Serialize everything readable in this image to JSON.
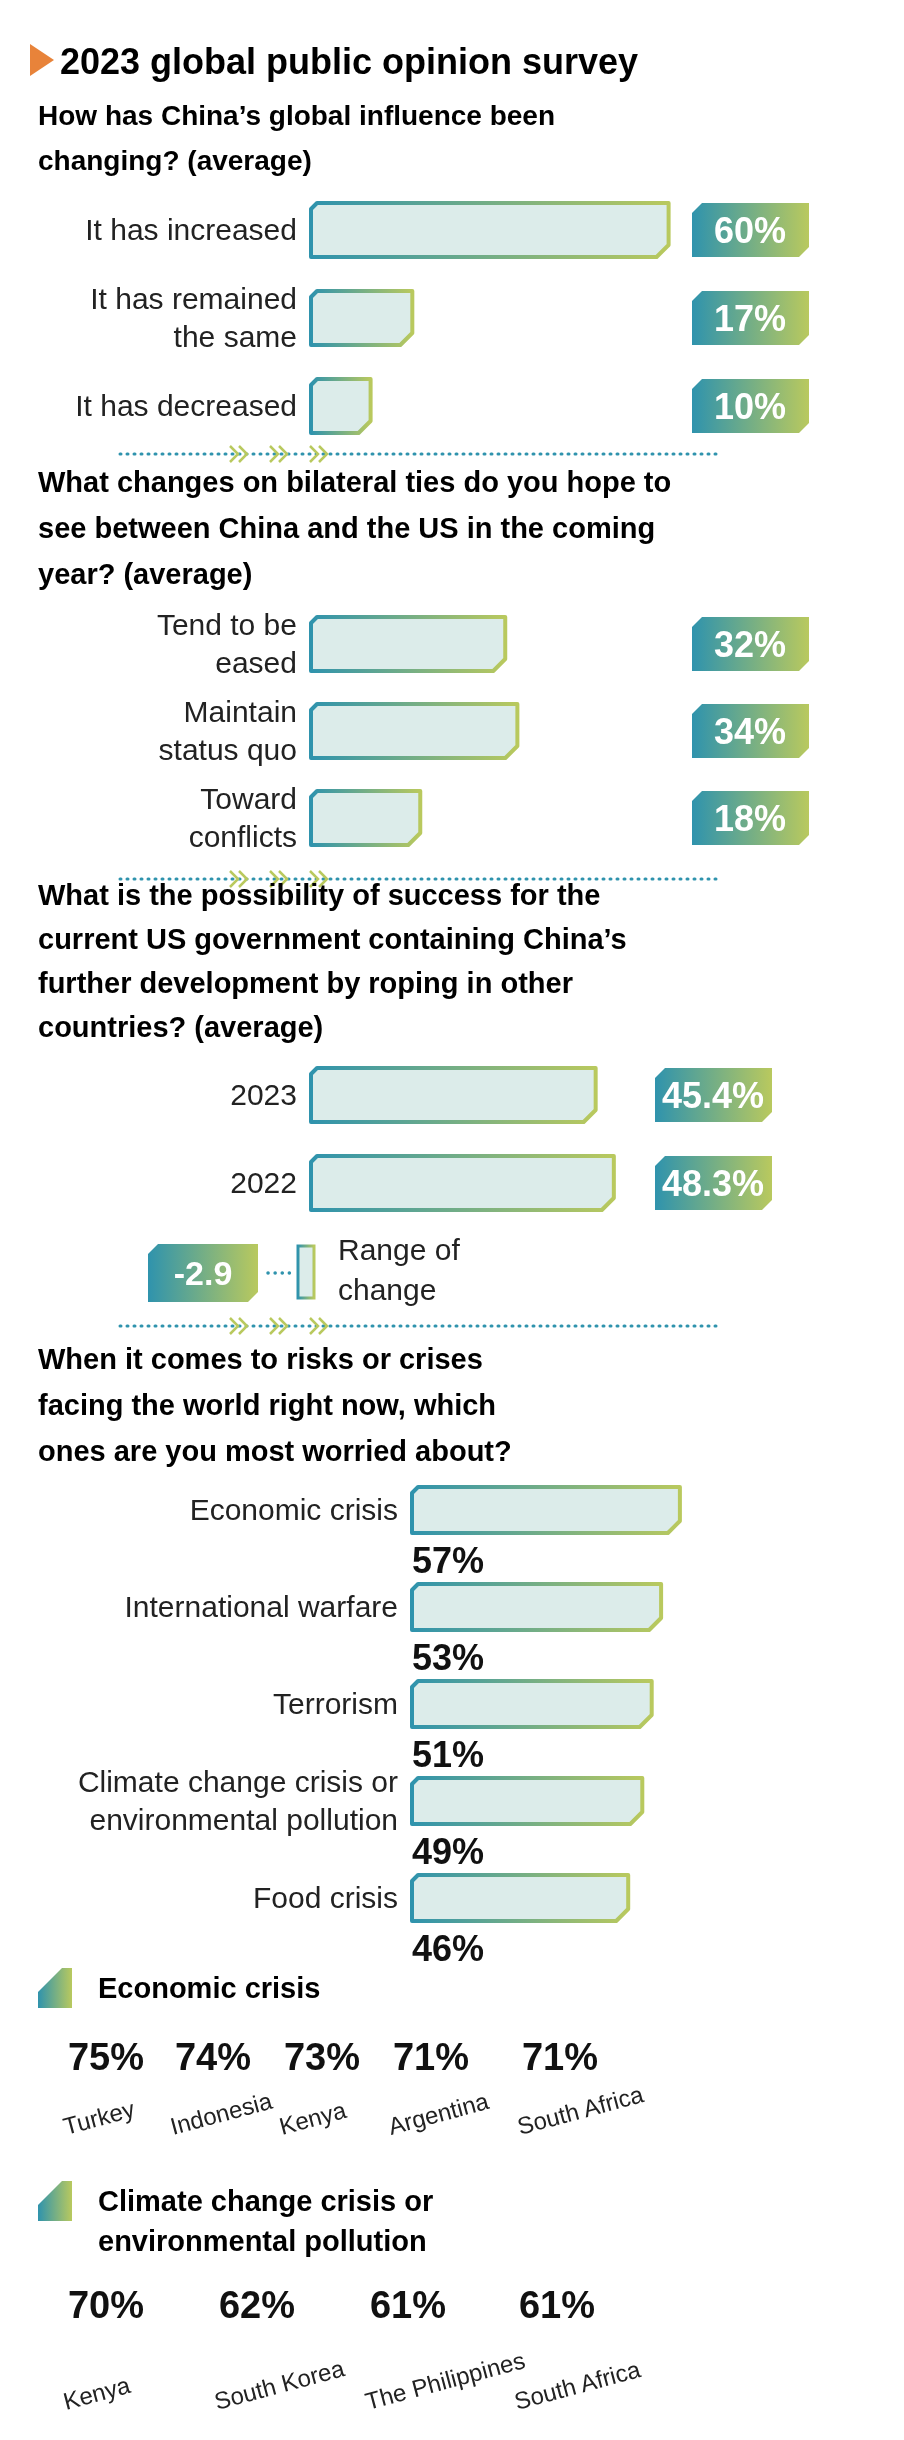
{
  "chart_data": [
    {
      "type": "bar",
      "orientation": "horizontal",
      "title": "2023 global public opinion survey",
      "subtitle": "How has China’s global influence been changing? (average)",
      "categories": [
        "It has increased",
        "It has remained the same",
        "It has decreased"
      ],
      "values": [
        60,
        17,
        10
      ],
      "value_labels": [
        "60%",
        "17%",
        "10%"
      ],
      "color": "#dcecea"
    },
    {
      "type": "bar",
      "orientation": "horizontal",
      "title": "What changes on bilateral ties do you hope to see between China and the US in the coming year? (average)",
      "categories": [
        "Tend to be eased",
        "Maintain status quo",
        "Toward conflicts"
      ],
      "values": [
        32,
        34,
        18
      ],
      "value_labels": [
        "32%",
        "34%",
        "18%"
      ],
      "color": "#dcecea"
    },
    {
      "type": "bar",
      "orientation": "horizontal",
      "title": "What is the possibility of success for the current US government containing China’s further development by roping in other countries? (average)",
      "categories": [
        "2023",
        "2022"
      ],
      "values": [
        45.4,
        48.3
      ],
      "value_labels": [
        "45.4%",
        "48.3%"
      ],
      "color": "#dcecea",
      "annotations": [
        "-2.9",
        "Range of change"
      ]
    },
    {
      "type": "bar",
      "orientation": "horizontal",
      "title": "When it comes to risks or crises facing the world right now, which ones are you most worried about?",
      "categories": [
        "Economic crisis",
        "International warfare",
        "Terrorism",
        "Climate change crisis or environmental pollution",
        "Food crisis"
      ],
      "values": [
        57,
        53,
        51,
        49,
        46
      ],
      "value_labels": [
        "57%",
        "53%",
        "51%",
        "49%",
        "46%"
      ],
      "color": "#dcecea"
    },
    {
      "type": "other",
      "title": "Economic crisis",
      "categories": [
        "Turkey",
        "Indonesia",
        "Kenya",
        "Argentina",
        "South Africa"
      ],
      "values": [
        75,
        74,
        73,
        71,
        71
      ],
      "value_labels": [
        "75%",
        "74%",
        "73%",
        "71%",
        "71%"
      ]
    },
    {
      "type": "other",
      "title": "Climate change crisis or environmental pollution",
      "categories": [
        "Kenya",
        "South Korea",
        "The Philippines",
        "South Africa"
      ],
      "values": [
        70,
        62,
        61,
        61
      ],
      "value_labels": [
        "70%",
        "62%",
        "61%",
        "61%"
      ]
    }
  ]
}
